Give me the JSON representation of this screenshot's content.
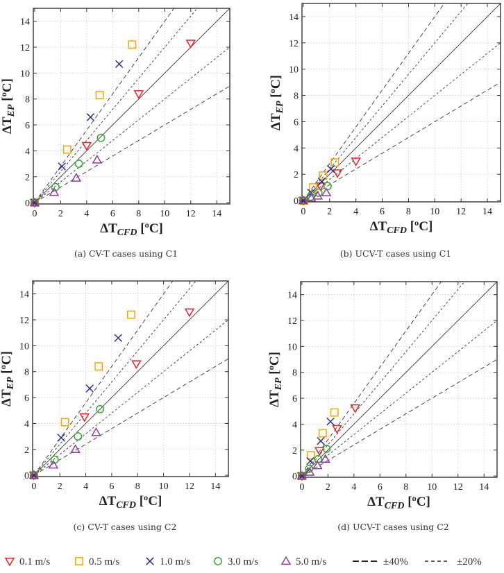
{
  "chart_data": [
    {
      "type": "scatter",
      "id": "a",
      "caption": "(a) CV-T cases using C1",
      "xlabel": {
        "main": "ΔT",
        "sub": "CFD",
        "unit": " [ºC]"
      },
      "ylabel": {
        "main": "ΔT",
        "sub": "EP",
        "unit": " [ºC]"
      },
      "xlim": [
        -0.1,
        15
      ],
      "ylim": [
        -0.1,
        15
      ],
      "xticks": [
        0,
        2,
        4,
        6,
        8,
        10,
        12,
        14
      ],
      "yticks": [
        0,
        2,
        4,
        6,
        8,
        10,
        12,
        14
      ],
      "grid": true,
      "series": [
        {
          "name": "0.1 m/s",
          "points": [
            [
              0,
              0
            ],
            [
              4.0,
              4.4
            ],
            [
              8.0,
              8.4
            ],
            [
              12.0,
              12.3
            ]
          ]
        },
        {
          "name": "0.5 m/s",
          "points": [
            [
              0,
              0
            ],
            [
              2.5,
              4.1
            ],
            [
              5.0,
              8.3
            ],
            [
              7.5,
              12.2
            ]
          ]
        },
        {
          "name": "1.0 m/s",
          "points": [
            [
              0,
              0
            ],
            [
              2.1,
              2.8
            ],
            [
              4.3,
              6.6
            ],
            [
              6.5,
              10.7
            ]
          ]
        },
        {
          "name": "3.0 m/s",
          "points": [
            [
              0,
              0
            ],
            [
              1.6,
              1.2
            ],
            [
              3.4,
              3.0
            ],
            [
              5.1,
              5.0
            ]
          ]
        },
        {
          "name": "5.0 m/s",
          "points": [
            [
              0,
              0
            ],
            [
              1.5,
              0.8
            ],
            [
              3.2,
              1.9
            ],
            [
              4.8,
              3.3
            ]
          ]
        }
      ]
    },
    {
      "type": "scatter",
      "id": "b",
      "caption": "(b) UCV-T cases using C1",
      "xlabel": {
        "main": "ΔT",
        "sub": "CFD",
        "unit": " [ºC]"
      },
      "ylabel": {
        "main": "ΔT",
        "sub": "EP",
        "unit": " [ºC]"
      },
      "xlim": [
        -0.1,
        15
      ],
      "ylim": [
        -0.1,
        15
      ],
      "xticks": [
        0,
        2,
        4,
        6,
        8,
        10,
        12,
        14
      ],
      "yticks": [
        0,
        2,
        4,
        6,
        8,
        10,
        12,
        14
      ],
      "grid": true,
      "series": [
        {
          "name": "0.1 m/s",
          "points": [
            [
              0,
              0
            ],
            [
              1.3,
              1.1
            ],
            [
              2.6,
              2.1
            ],
            [
              4.0,
              3.0
            ]
          ]
        },
        {
          "name": "0.5 m/s",
          "points": [
            [
              0,
              0
            ],
            [
              0.75,
              1.0
            ],
            [
              1.5,
              1.9
            ],
            [
              2.4,
              2.9
            ]
          ]
        },
        {
          "name": "1.0 m/s",
          "points": [
            [
              0,
              0
            ],
            [
              0.6,
              0.6
            ],
            [
              1.4,
              1.45
            ],
            [
              2.1,
              2.4
            ]
          ]
        },
        {
          "name": "3.0 m/s",
          "points": [
            [
              0,
              0
            ],
            [
              0.55,
              0.3
            ],
            [
              1.15,
              0.6
            ],
            [
              1.85,
              1.1
            ]
          ]
        },
        {
          "name": "5.0 m/s",
          "points": [
            [
              0,
              0
            ],
            [
              0.6,
              0.2
            ],
            [
              1.1,
              0.35
            ],
            [
              1.75,
              0.6
            ]
          ]
        }
      ]
    },
    {
      "type": "scatter",
      "id": "c",
      "caption": "(c) CV-T cases using C2",
      "xlabel": {
        "main": "ΔT",
        "sub": "CFD",
        "unit": " [ºC]"
      },
      "ylabel": {
        "main": "ΔT",
        "sub": "EP",
        "unit": " [ºC]"
      },
      "xlim": [
        -0.1,
        15
      ],
      "ylim": [
        -0.1,
        15
      ],
      "xticks": [
        0,
        2,
        4,
        6,
        8,
        10,
        12,
        14
      ],
      "yticks": [
        0,
        2,
        4,
        6,
        8,
        10,
        12,
        14
      ],
      "grid": true,
      "series": [
        {
          "name": "0.1 m/s",
          "points": [
            [
              0,
              0
            ],
            [
              3.9,
              4.5
            ],
            [
              7.9,
              8.6
            ],
            [
              12.0,
              12.6
            ]
          ]
        },
        {
          "name": "0.5 m/s",
          "points": [
            [
              0,
              0
            ],
            [
              2.4,
              4.1
            ],
            [
              5.0,
              8.4
            ],
            [
              7.5,
              12.4
            ]
          ]
        },
        {
          "name": "1.0 m/s",
          "points": [
            [
              0,
              0
            ],
            [
              2.1,
              2.9
            ],
            [
              4.3,
              6.7
            ],
            [
              6.5,
              10.6
            ]
          ]
        },
        {
          "name": "3.0 m/s",
          "points": [
            [
              0,
              0
            ],
            [
              1.6,
              1.2
            ],
            [
              3.4,
              3.0
            ],
            [
              5.1,
              5.1
            ]
          ]
        },
        {
          "name": "5.0 m/s",
          "points": [
            [
              0,
              0
            ],
            [
              1.5,
              0.8
            ],
            [
              3.2,
              2.0
            ],
            [
              4.8,
              3.3
            ]
          ]
        }
      ]
    },
    {
      "type": "scatter",
      "id": "d",
      "caption": "(d) UCV-T cases using C2",
      "xlabel": {
        "main": "ΔT",
        "sub": "CFD",
        "unit": " [ºC]"
      },
      "ylabel": {
        "main": "ΔT",
        "sub": "EP",
        "unit": " [ºC]"
      },
      "xlim": [
        -0.1,
        15
      ],
      "ylim": [
        -0.1,
        15
      ],
      "xticks": [
        0,
        2,
        4,
        6,
        8,
        10,
        12,
        14
      ],
      "yticks": [
        0,
        2,
        4,
        6,
        8,
        10,
        12,
        14
      ],
      "grid": true,
      "series": [
        {
          "name": "0.1 m/s",
          "points": [
            [
              0,
              0
            ],
            [
              1.35,
              1.95
            ],
            [
              2.7,
              3.65
            ],
            [
              4.1,
              5.25
            ]
          ]
        },
        {
          "name": "0.5 m/s",
          "points": [
            [
              0,
              0
            ],
            [
              0.7,
              1.6
            ],
            [
              1.6,
              3.3
            ],
            [
              2.5,
              4.9
            ]
          ]
        },
        {
          "name": "1.0 m/s",
          "points": [
            [
              0,
              0
            ],
            [
              0.65,
              1.15
            ],
            [
              1.45,
              2.7
            ],
            [
              2.2,
              4.2
            ]
          ]
        },
        {
          "name": "3.0 m/s",
          "points": [
            [
              0,
              0
            ],
            [
              0.55,
              0.55
            ],
            [
              1.25,
              1.3
            ],
            [
              1.9,
              2.1
            ]
          ]
        },
        {
          "name": "5.0 m/s",
          "points": [
            [
              0,
              0
            ],
            [
              0.6,
              0.3
            ],
            [
              1.2,
              0.8
            ],
            [
              1.8,
              1.3
            ]
          ]
        }
      ]
    }
  ],
  "reference_lines": [
    {
      "name": "1:1",
      "slope": 1.0,
      "style": "solid"
    },
    {
      "name": "+40%",
      "slope": 1.4,
      "style": "long-dash"
    },
    {
      "name": "-40%",
      "slope": 0.6,
      "style": "long-dash"
    },
    {
      "name": "+20%",
      "slope": 1.2,
      "style": "short-dash"
    },
    {
      "name": "-20%",
      "slope": 0.8,
      "style": "short-dash"
    }
  ],
  "series_styles": [
    {
      "name": "0.1 m/s",
      "marker": "triangle-down",
      "color": "#e8202a"
    },
    {
      "name": "0.5 m/s",
      "marker": "square",
      "color": "#f5a500"
    },
    {
      "name": "1.0 m/s",
      "marker": "x",
      "color": "#2b2f8f"
    },
    {
      "name": "3.0 m/s",
      "marker": "circle",
      "color": "#3aaa35"
    },
    {
      "name": "5.0 m/s",
      "marker": "triangle-up",
      "color": "#8e3c9e"
    }
  ],
  "legend": {
    "placement": "bottom",
    "entries": [
      {
        "label": "0.1 m/s",
        "marker": "triangle-down",
        "color": "#e8202a"
      },
      {
        "label": "0.5 m/s",
        "marker": "square",
        "color": "#f5a500"
      },
      {
        "label": "1.0 m/s",
        "marker": "x",
        "color": "#2b2f8f"
      },
      {
        "label": "3.0 m/s",
        "marker": "circle",
        "color": "#3aaa35"
      },
      {
        "label": "5.0 m/s",
        "marker": "triangle-up",
        "color": "#8e3c9e"
      },
      {
        "label": "±40%",
        "marker": "long-dash-line",
        "color": "#222222"
      },
      {
        "label": "±20%",
        "marker": "short-dash-line",
        "color": "#222222"
      }
    ]
  }
}
